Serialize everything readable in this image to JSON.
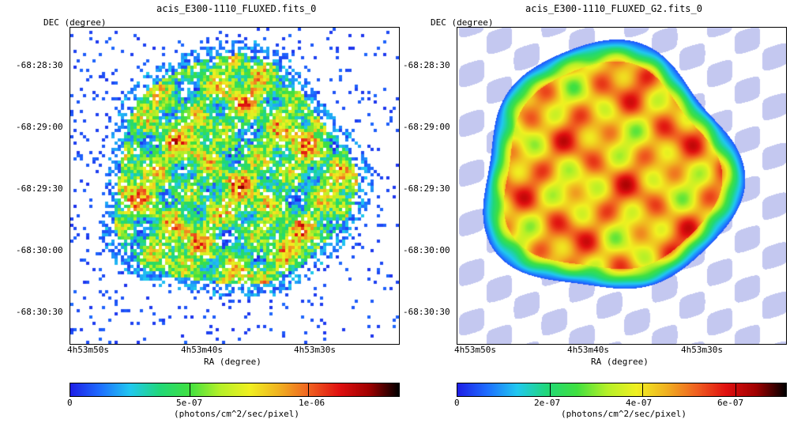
{
  "panels": [
    {
      "title": "acis_E300-1110_FLUXED.fits_0",
      "y_axis_label": "DEC (degree)",
      "x_axis_label": "RA (degree)",
      "y_ticks": [
        "-68:28:30",
        "-68:29:00",
        "-68:29:30",
        "-68:30:00",
        "-68:30:30"
      ],
      "x_ticks": [
        "4h53m50s",
        "4h53m40s",
        "4h53m30s"
      ],
      "colorbar": {
        "label": "(photons/cm^2/sec/pixel)",
        "ticks": [
          "0",
          "5e-07",
          "1e-06"
        ],
        "tick_values": [
          0,
          5e-07,
          1e-06
        ],
        "max": 1.38e-06
      },
      "style": "raw"
    },
    {
      "title": "acis_E300-1110_FLUXED_G2.fits_0",
      "y_axis_label": "DEC (degree)",
      "x_axis_label": "RA (degree)",
      "y_ticks": [
        "-68:28:30",
        "-68:29:00",
        "-68:29:30",
        "-68:30:00",
        "-68:30:30"
      ],
      "x_ticks": [
        "4h53m50s",
        "4h53m40s",
        "4h53m30s"
      ],
      "colorbar": {
        "label": "(photons/cm^2/sec/pixel)",
        "ticks": [
          "0",
          "2e-07",
          "4e-07",
          "6e-07"
        ],
        "tick_values": [
          0,
          2e-07,
          4e-07,
          6e-07
        ],
        "max": 7.1e-07
      },
      "style": "smoothed"
    }
  ],
  "colormap": [
    "#ffffff",
    "#1e1ee6",
    "#1e6eff",
    "#20c8f0",
    "#20d878",
    "#40e040",
    "#b4f028",
    "#f0f020",
    "#f0b020",
    "#f06020",
    "#e01010",
    "#a00000",
    "#000000"
  ]
}
